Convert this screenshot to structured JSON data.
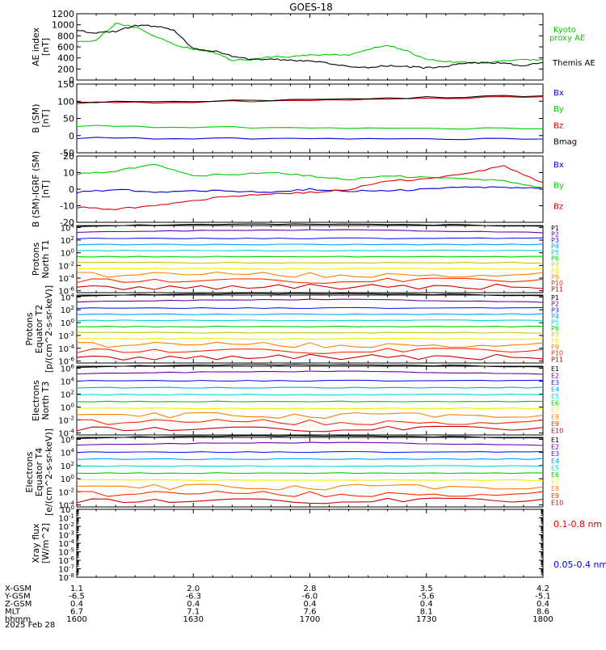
{
  "chart_data": [
    {
      "type": "line",
      "title": "GOES-18",
      "ylabel": [
        "AE index",
        "[nT]"
      ],
      "ylim": [
        0,
        1200
      ],
      "yticks": [
        "0",
        "200",
        "400",
        "600",
        "800",
        "1000",
        "1200"
      ],
      "legend": [
        {
          "name": "Kyoto",
          "color": "#00cc00"
        },
        {
          "name": "proxy AE",
          "color": "#00cc00"
        },
        {
          "name": "Themis AE",
          "color": "#000000"
        }
      ],
      "x": [
        1600,
        1605,
        1610,
        1615,
        1620,
        1625,
        1630,
        1635,
        1640,
        1645,
        1650,
        1655,
        1700,
        1705,
        1710,
        1715,
        1720,
        1725,
        1730,
        1735,
        1740,
        1745,
        1750,
        1755,
        1800
      ],
      "series": [
        {
          "name": "Kyoto proxy AE",
          "color": "#00cc00",
          "values": [
            700,
            720,
            1020,
            960,
            800,
            640,
            560,
            500,
            360,
            370,
            420,
            420,
            450,
            460,
            460,
            560,
            640,
            520,
            380,
            340,
            320,
            300,
            360,
            360,
            380
          ]
        },
        {
          "name": "Themis AE",
          "color": "#000000",
          "values": [
            900,
            850,
            880,
            990,
            980,
            900,
            560,
            530,
            440,
            370,
            380,
            360,
            350,
            300,
            240,
            230,
            260,
            240,
            220,
            250,
            300,
            320,
            300,
            260,
            320
          ]
        }
      ]
    },
    {
      "type": "line",
      "ylabel": [
        "B (SM)",
        "[nT]"
      ],
      "ylim": [
        -50,
        150
      ],
      "yticks": [
        "-50",
        "0",
        "50",
        "100",
        "150"
      ],
      "legend": [
        {
          "name": "Bx",
          "color": "#0000dd"
        },
        {
          "name": "By",
          "color": "#00cc00"
        },
        {
          "name": "Bz",
          "color": "#dd0000"
        },
        {
          "name": "Bmag",
          "color": "#000000"
        }
      ],
      "x": [
        1600,
        1630,
        1700,
        1730,
        1800
      ],
      "series": [
        {
          "name": "Bx",
          "color": "#0000dd",
          "values": [
            -7,
            -8,
            -9,
            -10,
            -10
          ]
        },
        {
          "name": "By",
          "color": "#00cc00",
          "values": [
            28,
            25,
            22,
            21,
            20
          ]
        },
        {
          "name": "Bz",
          "color": "#dd0000",
          "values": [
            95,
            98,
            102,
            108,
            113
          ]
        },
        {
          "name": "Bmag",
          "color": "#000000",
          "values": [
            98,
            101,
            105,
            111,
            116
          ]
        }
      ]
    },
    {
      "type": "line",
      "ylabel": [
        "B (SM)-IGRF (SM)",
        "[nT]"
      ],
      "ylim": [
        -20,
        20
      ],
      "yticks": [
        "-20",
        "-10",
        "0",
        "10",
        "20"
      ],
      "legend": [
        {
          "name": "Bx",
          "color": "#0000dd"
        },
        {
          "name": "By",
          "color": "#00cc00"
        },
        {
          "name": "Bz",
          "color": "#dd0000"
        }
      ],
      "x": [
        1600,
        1610,
        1620,
        1630,
        1640,
        1650,
        1700,
        1710,
        1720,
        1730,
        1740,
        1750,
        1800
      ],
      "series": [
        {
          "name": "Bx",
          "color": "#0000dd",
          "values": [
            -2,
            0,
            -2,
            -1,
            -1,
            -2,
            0,
            -1,
            -1,
            0,
            1,
            1,
            1
          ]
        },
        {
          "name": "By",
          "color": "#00cc00",
          "values": [
            9,
            11,
            15,
            8,
            9,
            10,
            8,
            6,
            8,
            7,
            6,
            5,
            1
          ]
        },
        {
          "name": "Bz",
          "color": "#dd0000",
          "values": [
            -11,
            -12,
            -10,
            -7,
            -4,
            -3,
            -2,
            0,
            5,
            6,
            9,
            14,
            4
          ]
        }
      ]
    },
    {
      "type": "line",
      "ylabel": [
        "Protons",
        "North T1"
      ],
      "scale": "log",
      "yticks": [
        "10^4",
        "10^2",
        "10^0",
        "10^-2",
        "10^-4",
        "10^-6"
      ],
      "channels": [
        "P1",
        "P2",
        "P3",
        "P4",
        "P5",
        "P6",
        "P7",
        "P8",
        "P9",
        "P10",
        "P11"
      ]
    },
    {
      "type": "line",
      "ylabel": [
        "Protons",
        "Equator T2",
        "[p/(cm^2-s-sr-keV)]"
      ],
      "scale": "log",
      "yticks": [
        "10^4",
        "10^2",
        "10^0",
        "10^-2",
        "10^-4",
        "10^-6"
      ],
      "channels": [
        "P1",
        "P2",
        "P3",
        "P4",
        "P5",
        "P6",
        "P7",
        "P8",
        "P9",
        "P10",
        "P11"
      ]
    },
    {
      "type": "line",
      "ylabel": [
        "Electrons",
        "North T3"
      ],
      "scale": "log",
      "yticks": [
        "10^6",
        "10^4",
        "10^2",
        "10^0",
        "10^-2",
        "10^-4"
      ],
      "channels": [
        "E1",
        "E2",
        "E3",
        "E4",
        "E5",
        "E6",
        "E7",
        "E8",
        "E9",
        "E10"
      ]
    },
    {
      "type": "line",
      "ylabel": [
        "Electrons",
        "Equator T4",
        "[e/(cm^2-s-sr-keV)]"
      ],
      "scale": "log",
      "yticks": [
        "10^6",
        "10^4",
        "10^2",
        "10^0",
        "10^-2",
        "10^-4"
      ],
      "channels": [
        "E1",
        "E2",
        "E3",
        "E4",
        "E5",
        "E6",
        "E7",
        "E8",
        "E9",
        "E10"
      ]
    },
    {
      "type": "line",
      "ylabel": [
        "Xray flux",
        "[W/m^2]"
      ],
      "scale": "log",
      "yticks": [
        "10^0",
        "10^-1",
        "10^-2",
        "10^-3",
        "10^-4",
        "10^-5",
        "10^-6",
        "10^-7",
        "10^-8"
      ],
      "legend": [
        {
          "name": "0.1-0.8 nm",
          "color": "#dd0000"
        },
        {
          "name": "0.05-0.4 nm",
          "color": "#0000dd"
        }
      ],
      "series": []
    }
  ],
  "bottom_axis": {
    "rows": [
      {
        "label": "X-GSM",
        "values": [
          "1.1",
          "2.0",
          "2.8",
          "3.5",
          "4.2"
        ]
      },
      {
        "label": "Y-GSM",
        "values": [
          "-6.5",
          "-6.3",
          "-6.0",
          "-5.6",
          "-5.1"
        ]
      },
      {
        "label": "Z-GSM",
        "values": [
          "0.4",
          "0.4",
          "0.4",
          "0.4",
          "0.4"
        ]
      },
      {
        "label": "MLT",
        "values": [
          "6.7",
          "7.1",
          "7.6",
          "8.1",
          "8.6"
        ]
      },
      {
        "label": "hhmm",
        "values": [
          "1600",
          "1630",
          "1700",
          "1730",
          "1800"
        ]
      }
    ],
    "date": "2025 Feb 28"
  },
  "channel_colors": {
    "P": [
      "#000000",
      "#6a00a8",
      "#1a1aff",
      "#00a0ff",
      "#00d8d8",
      "#00d000",
      "#c8c800",
      "#f0f000",
      "#ff8000",
      "#ff2a00",
      "#cc0000"
    ],
    "E": [
      "#000000",
      "#6a00a8",
      "#1a1aff",
      "#00a0ff",
      "#00d8d8",
      "#00d000",
      "#f0f000",
      "#ff8000",
      "#ff2a00",
      "#cc0000"
    ]
  }
}
